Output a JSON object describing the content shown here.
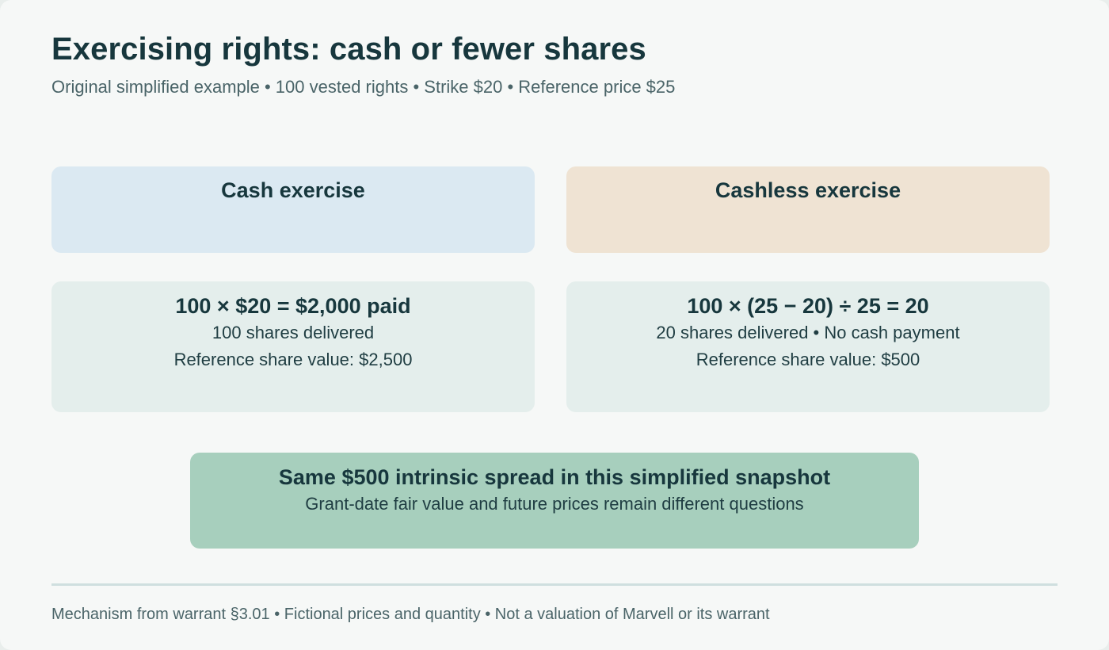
{
  "header": {
    "title": "Exercising rights: cash or fewer shares",
    "subtitle": "Original simplified example • 100 vested rights • Strike $20 • Reference price $25"
  },
  "cash": {
    "label": "Cash exercise",
    "formula": "100 × $20 = $2,000 paid",
    "delivered": "100 shares delivered",
    "value": "Reference share value: $2,500"
  },
  "cashless": {
    "label": "Cashless exercise",
    "formula": "100 × (25 − 20) ÷ 25 = 20",
    "delivered": "20 shares delivered • No cash payment",
    "value": "Reference share value: $500"
  },
  "summary": {
    "headline": "Same $500 intrinsic spread in this simplified snapshot",
    "note": "Grant-date fair value and future prices remain different questions"
  },
  "footer": {
    "text": "Mechanism from warrant §3.01 • Fictional prices and quantity • Not a valuation of Marvell or its warrant"
  },
  "colors": {
    "cash_header": "#dbe9f2",
    "cashless_header": "#efe3d3",
    "detail_panel": "#e4eeec",
    "summary_panel": "#a7cfbd",
    "title_text": "#17373d"
  }
}
